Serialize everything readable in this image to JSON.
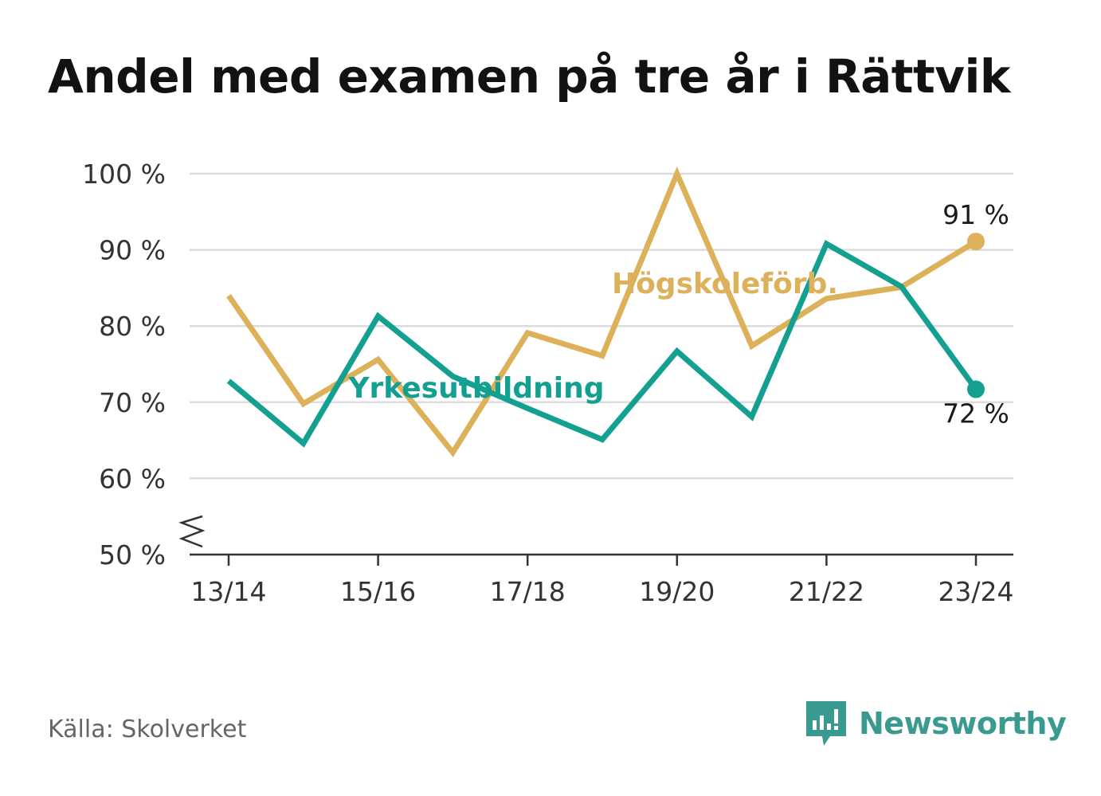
{
  "title": "Andel med examen på tre år i Rättvik",
  "source": "Källa: Skolverket",
  "brand": {
    "name": "Newsworthy",
    "icon": "bar-chart-speech-bubble-icon",
    "color": "#3a9a90"
  },
  "chart_data": {
    "type": "line",
    "x": [
      "13/14",
      "14/15",
      "15/16",
      "16/17",
      "17/18",
      "18/19",
      "19/20",
      "20/21",
      "21/22",
      "22/23",
      "23/24"
    ],
    "xtick_labels": [
      "13/14",
      "15/16",
      "17/18",
      "19/20",
      "21/22",
      "23/24"
    ],
    "ytick_labels": [
      "50 %",
      "60 %",
      "70 %",
      "80 %",
      "90 %",
      "100 %"
    ],
    "ylim": [
      50,
      100
    ],
    "axis_break": true,
    "grid": true,
    "series": [
      {
        "name": "Högskoleförb.",
        "color": "#dcb15a",
        "values": [
          84,
          69.8,
          75.6,
          63.4,
          79.1,
          76.1,
          100,
          77.4,
          83.6,
          85.1,
          91.1
        ],
        "end_label": "91 %"
      },
      {
        "name": "Yrkesutbildning",
        "color": "#14a090",
        "values": [
          72.8,
          64.6,
          81.3,
          73.4,
          69.2,
          65.1,
          76.7,
          68.1,
          90.8,
          85.2,
          71.7
        ],
        "end_label": "72 %"
      }
    ]
  }
}
